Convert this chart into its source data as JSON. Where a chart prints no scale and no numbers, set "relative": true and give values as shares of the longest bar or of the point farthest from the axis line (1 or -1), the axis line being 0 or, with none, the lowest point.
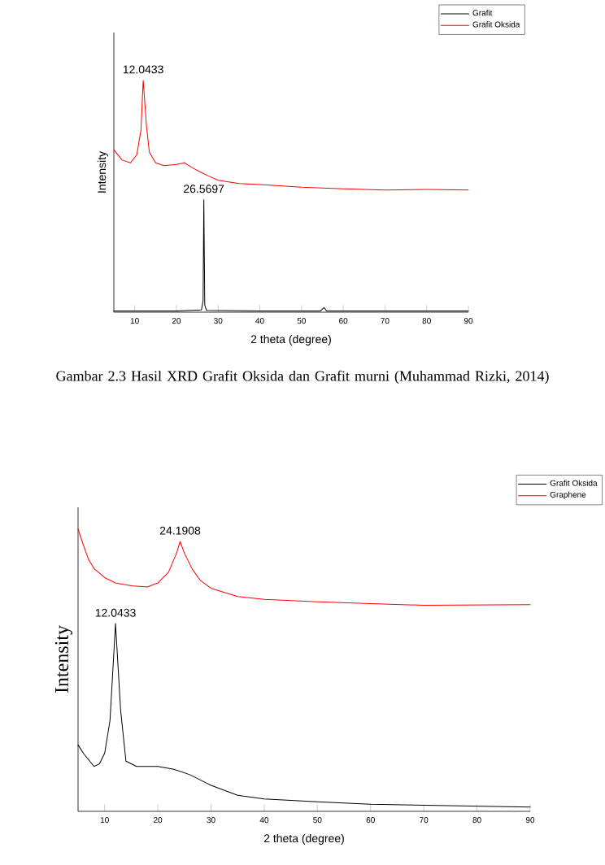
{
  "chart_data": [
    {
      "type": "line",
      "relative": true,
      "xlabel": "2 theta (degree)",
      "ylabel": "Intensity",
      "xlim": [
        5,
        90
      ],
      "xticks": [
        10,
        20,
        30,
        40,
        50,
        60,
        70,
        80,
        90
      ],
      "legend": "top right",
      "series": [
        {
          "name": "Grafit",
          "color": "#000000",
          "x": [
            5,
            20,
            26,
            26.4,
            26.57,
            26.8,
            27.2,
            40,
            54.5,
            55.4,
            56,
            90
          ],
          "values": [
            0.005,
            0.005,
            0.01,
            0.05,
            0.485,
            0.03,
            0.008,
            0.005,
            0.005,
            0.02,
            0.005,
            0.005
          ]
        },
        {
          "name": "Grafit Oksida",
          "color": "#ff0000",
          "x": [
            5,
            7,
            9,
            10.5,
            11.5,
            12.04,
            12.8,
            13.5,
            15,
            17,
            20,
            22,
            24,
            26,
            28,
            30,
            35,
            40,
            50,
            60,
            70,
            80,
            90
          ],
          "values": [
            0.7,
            0.656,
            0.644,
            0.679,
            0.785,
            1.0,
            0.808,
            0.691,
            0.644,
            0.632,
            0.637,
            0.644,
            0.621,
            0.602,
            0.585,
            0.569,
            0.555,
            0.55,
            0.539,
            0.532,
            0.527,
            0.529,
            0.527
          ]
        }
      ],
      "annotations": [
        {
          "text": "12.0433",
          "x": 12.04,
          "y": 1.0
        },
        {
          "text": "26.5697",
          "x": 26.57,
          "y": 0.485
        },
        "Gambar 2.3 Hasil XRD Grafit Oksida dan Grafit murni (Muhammad Rizki, 2014)"
      ]
    },
    {
      "type": "line",
      "relative": true,
      "xlabel": "2 theta (degree)",
      "ylabel": "Intensity",
      "xlim": [
        5,
        90
      ],
      "xticks": [
        10,
        20,
        30,
        40,
        50,
        60,
        70,
        80,
        90
      ],
      "legend": "top right",
      "series": [
        {
          "name": "Grafit Oksida",
          "color": "#000000",
          "x": [
            5,
            6,
            8,
            9,
            10,
            11,
            12.04,
            13,
            14,
            16,
            20,
            23,
            26,
            30,
            35,
            40,
            50,
            60,
            90
          ],
          "values": [
            0.235,
            0.206,
            0.159,
            0.168,
            0.206,
            0.321,
            0.665,
            0.359,
            0.178,
            0.159,
            0.159,
            0.149,
            0.13,
            0.092,
            0.057,
            0.044,
            0.034,
            0.025,
            0.015
          ]
        },
        {
          "name": "Graphene",
          "color": "#ff0000",
          "x": [
            5,
            6,
            7,
            8,
            10,
            12,
            15,
            18,
            20,
            22,
            23.5,
            24.19,
            25,
            26.5,
            28,
            30,
            35,
            40,
            50,
            60,
            70,
            90
          ],
          "values": [
            1.0,
            0.943,
            0.891,
            0.86,
            0.828,
            0.809,
            0.799,
            0.795,
            0.809,
            0.847,
            0.914,
            0.956,
            0.914,
            0.857,
            0.818,
            0.79,
            0.761,
            0.751,
            0.742,
            0.736,
            0.73,
            0.732
          ]
        }
      ],
      "annotations": [
        {
          "text": "24.1908",
          "x": 24.19,
          "y": 0.956
        },
        {
          "text": "12.0433",
          "x": 12.04,
          "y": 0.665
        }
      ]
    }
  ]
}
